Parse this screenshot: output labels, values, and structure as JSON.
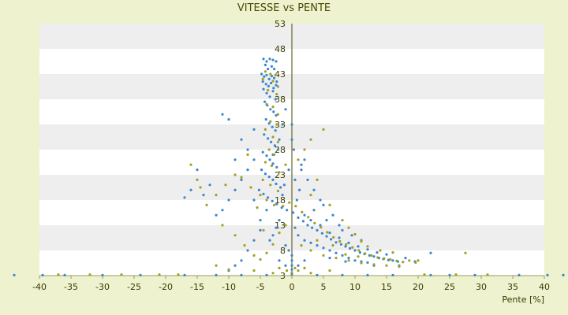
{
  "chart_data": {
    "type": "scatter",
    "title": "VITESSE vs PENTE",
    "xlabel": "Pente [%]",
    "ylabel": "",
    "xlim": [
      -40,
      40
    ],
    "ylim": [
      3,
      53
    ],
    "x_ticks": [
      "-40",
      "-35",
      "-30",
      "-25",
      "-20",
      "-15",
      "-10",
      "-5",
      "0",
      "5",
      "10",
      "15",
      "20",
      "25",
      "30",
      "35",
      "40"
    ],
    "y_ticks": [
      "53",
      "48",
      "43",
      "38",
      "33",
      "28",
      "23",
      "18",
      "13",
      "8",
      "3"
    ],
    "grid": "horizontal alternating bands",
    "legend": "none",
    "colors": {
      "background": "#eef2cf",
      "band_light": "#ffffff",
      "band_dark": "#eeeeee",
      "axis": "#4a4a00",
      "series_blue": "#3a86d0",
      "series_olive": "#a0a020"
    },
    "series": [
      {
        "color": "#3a86d0",
        "points": [
          [
            -4.5,
            46
          ],
          [
            -4,
            45.5
          ],
          [
            -3.5,
            46
          ],
          [
            -3,
            45.8
          ],
          [
            -2.5,
            45.5
          ],
          [
            -4.2,
            44.8
          ],
          [
            -3.8,
            44
          ],
          [
            -3.2,
            44.5
          ],
          [
            -2.8,
            44
          ],
          [
            -4.8,
            43
          ],
          [
            -4.4,
            42.5
          ],
          [
            -4,
            42.8
          ],
          [
            -3.6,
            42
          ],
          [
            -3.2,
            42.6
          ],
          [
            -2.8,
            42.2
          ],
          [
            -2.4,
            41.5
          ],
          [
            -4.6,
            41.5
          ],
          [
            -4.1,
            41
          ],
          [
            -3.7,
            40.6
          ],
          [
            -3.3,
            41.2
          ],
          [
            -2.9,
            40.2
          ],
          [
            -2.5,
            40.8
          ],
          [
            -4.5,
            40
          ],
          [
            -4,
            39.2
          ],
          [
            -3.5,
            38.5
          ],
          [
            -3,
            39.6
          ],
          [
            -2.6,
            38
          ],
          [
            -4.3,
            37.5
          ],
          [
            -3.9,
            36.8
          ],
          [
            -3.4,
            36
          ],
          [
            -2.9,
            35.5
          ],
          [
            -2.5,
            34.8
          ],
          [
            -4.1,
            34
          ],
          [
            -3.6,
            33.2
          ],
          [
            -3.1,
            32.5
          ],
          [
            -2.6,
            31.8
          ],
          [
            -4.4,
            31
          ],
          [
            -3.8,
            30.2
          ],
          [
            -3.3,
            29.5
          ],
          [
            -2.7,
            28.8
          ],
          [
            -2.2,
            28
          ],
          [
            -4.6,
            27.5
          ],
          [
            -4,
            26.8
          ],
          [
            -3.5,
            26
          ],
          [
            -3,
            25.2
          ],
          [
            -2.4,
            24.5
          ],
          [
            -4.8,
            24
          ],
          [
            -4.2,
            23.2
          ],
          [
            -3.6,
            22.6
          ],
          [
            -3,
            22
          ],
          [
            -2.5,
            21.2
          ],
          [
            -1.8,
            20.5
          ],
          [
            -5.2,
            20
          ],
          [
            -4.5,
            19.2
          ],
          [
            -3.8,
            18.5
          ],
          [
            -3.1,
            17.8
          ],
          [
            -2.4,
            17.2
          ],
          [
            -1.6,
            16.5
          ],
          [
            -0.8,
            16
          ],
          [
            0.2,
            15.5
          ],
          [
            0.8,
            18
          ],
          [
            1.2,
            20
          ],
          [
            0.5,
            22
          ],
          [
            1.5,
            24
          ],
          [
            2,
            26
          ],
          [
            0.3,
            28
          ],
          [
            1,
            14.5
          ],
          [
            1.8,
            13.8
          ],
          [
            2.5,
            13
          ],
          [
            3.2,
            12.5
          ],
          [
            4,
            12
          ],
          [
            4.8,
            11.4
          ],
          [
            5.5,
            10.8
          ],
          [
            6.2,
            10.2
          ],
          [
            7,
            9.6
          ],
          [
            7.8,
            9.2
          ],
          [
            8.5,
            8.8
          ],
          [
            9.2,
            8.4
          ],
          [
            10,
            8
          ],
          [
            10.8,
            7.6
          ],
          [
            11.5,
            7.3
          ],
          [
            12.3,
            7
          ],
          [
            13,
            6.8
          ],
          [
            13.8,
            6.5
          ],
          [
            14.5,
            6.3
          ],
          [
            15.3,
            6.1
          ],
          [
            16,
            6
          ],
          [
            16.8,
            5.8
          ],
          [
            2,
            15
          ],
          [
            3,
            14
          ],
          [
            4.5,
            13
          ],
          [
            6,
            11.5
          ],
          [
            7.5,
            10.5
          ],
          [
            9,
            9.5
          ],
          [
            10.5,
            8.8
          ],
          [
            12,
            8.2
          ],
          [
            13.5,
            7.6
          ],
          [
            15,
            7.2
          ],
          [
            3.5,
            16
          ],
          [
            5,
            17
          ],
          [
            6.5,
            15
          ],
          [
            8,
            12
          ],
          [
            9.5,
            11
          ],
          [
            11,
            10
          ],
          [
            1,
            11
          ],
          [
            2,
            10
          ],
          [
            3,
            9.5
          ],
          [
            4,
            9
          ],
          [
            5,
            8.5
          ],
          [
            6,
            8
          ],
          [
            7,
            7.5
          ],
          [
            8,
            7
          ],
          [
            9,
            6.5
          ],
          [
            10,
            6
          ],
          [
            11,
            5.8
          ],
          [
            12,
            5.6
          ],
          [
            -6,
            26
          ],
          [
            -7,
            24
          ],
          [
            -8,
            22
          ],
          [
            -9,
            20
          ],
          [
            -10,
            18
          ],
          [
            -11,
            16
          ],
          [
            -12,
            15
          ],
          [
            -13,
            21
          ],
          [
            -14,
            19
          ],
          [
            -15,
            24
          ],
          [
            -16,
            20
          ],
          [
            -17,
            18.5
          ],
          [
            -8,
            30
          ],
          [
            -10,
            34
          ],
          [
            -11,
            35
          ],
          [
            -6,
            32
          ],
          [
            -7,
            28
          ],
          [
            -9,
            26
          ],
          [
            -5,
            12
          ],
          [
            -6,
            10
          ],
          [
            -7,
            8
          ],
          [
            -8,
            6
          ],
          [
            -9,
            5
          ],
          [
            -10,
            4
          ],
          [
            -44,
            3.1
          ],
          [
            -39.5,
            3.1
          ],
          [
            -36,
            3.1
          ],
          [
            -30,
            3.1
          ],
          [
            -24,
            3.1
          ],
          [
            -17,
            3.1
          ],
          [
            -12,
            3.1
          ],
          [
            -8,
            3.1
          ],
          [
            -4,
            3.1
          ],
          [
            0,
            3.3
          ],
          [
            4,
            3.1
          ],
          [
            8,
            3.1
          ],
          [
            12,
            3.1
          ],
          [
            16,
            3.1
          ],
          [
            22,
            3.1
          ],
          [
            25,
            3.1
          ],
          [
            29,
            3.1
          ],
          [
            36,
            3.1
          ],
          [
            40.5,
            3.1
          ],
          [
            43,
            3.1
          ],
          [
            0,
            5
          ],
          [
            0,
            6
          ],
          [
            0,
            7
          ],
          [
            0,
            4.2
          ],
          [
            1,
            5
          ],
          [
            -1,
            5
          ],
          [
            2,
            6
          ],
          [
            -2,
            6
          ],
          [
            1.5,
            25
          ],
          [
            2.5,
            22
          ],
          [
            3.5,
            20
          ],
          [
            4.5,
            18
          ],
          [
            0,
            30
          ],
          [
            0,
            33
          ],
          [
            -1,
            36
          ],
          [
            -0.5,
            24
          ],
          [
            -1.2,
            21
          ],
          [
            -1.5,
            19
          ],
          [
            -2,
            14
          ],
          [
            -2.5,
            12.5
          ],
          [
            -3,
            11
          ],
          [
            -3.5,
            10
          ],
          [
            -1,
            9
          ],
          [
            -0.5,
            8
          ],
          [
            0.5,
            12.5
          ],
          [
            5.5,
            14
          ],
          [
            7.5,
            13
          ],
          [
            6,
            6.5
          ],
          [
            8.5,
            5.8
          ],
          [
            13,
            5
          ],
          [
            17,
            5
          ],
          [
            18,
            6.5
          ],
          [
            19.5,
            5.8
          ],
          [
            22,
            7.5
          ],
          [
            -5,
            14
          ],
          [
            -4,
            16
          ],
          [
            -6,
            18
          ],
          [
            -3,
            27
          ],
          [
            -2,
            30
          ],
          [
            -1.5,
            33
          ]
        ]
      },
      {
        "color": "#a0a020",
        "points": [
          [
            -4.2,
            43.5
          ],
          [
            -3.4,
            43
          ],
          [
            -2.6,
            42.8
          ],
          [
            -4.6,
            42
          ],
          [
            -3,
            41.6
          ],
          [
            -2.2,
            40.5
          ],
          [
            -3.8,
            39.8
          ],
          [
            -2.4,
            39
          ],
          [
            -4,
            37
          ],
          [
            -3,
            36.5
          ],
          [
            -2.2,
            35
          ],
          [
            -3.4,
            33.6
          ],
          [
            -2.4,
            33
          ],
          [
            -4.2,
            32
          ],
          [
            -3,
            30.5
          ],
          [
            -2.2,
            29.5
          ],
          [
            -3.6,
            28
          ],
          [
            -2.8,
            27
          ],
          [
            -4.2,
            25.5
          ],
          [
            -3.2,
            24.8
          ],
          [
            -2,
            23.5
          ],
          [
            -4.6,
            22
          ],
          [
            -3.4,
            21
          ],
          [
            -2.2,
            19.8
          ],
          [
            -5,
            19
          ],
          [
            -4,
            18
          ],
          [
            -2.8,
            17
          ],
          [
            -1.4,
            16.8
          ],
          [
            -0.4,
            17.5
          ],
          [
            0.6,
            16.8
          ],
          [
            1.6,
            15.6
          ],
          [
            2.6,
            14.6
          ],
          [
            3.6,
            13.4
          ],
          [
            4.6,
            12.6
          ],
          [
            5.6,
            11.6
          ],
          [
            6.6,
            10.6
          ],
          [
            7.6,
            9.8
          ],
          [
            8.6,
            9.2
          ],
          [
            9.6,
            8.6
          ],
          [
            10.6,
            8
          ],
          [
            11.6,
            7.4
          ],
          [
            12.6,
            7
          ],
          [
            13.6,
            6.6
          ],
          [
            14.6,
            6.4
          ],
          [
            15.6,
            6.2
          ],
          [
            16.6,
            5.9
          ],
          [
            17.6,
            5.7
          ],
          [
            18.6,
            6
          ],
          [
            19.6,
            5.6
          ],
          [
            -7,
            27
          ],
          [
            -9,
            23
          ],
          [
            -10.5,
            21
          ],
          [
            -12,
            19
          ],
          [
            -13.5,
            17
          ],
          [
            -15,
            22
          ],
          [
            -16,
            25
          ],
          [
            -14.5,
            20.5
          ],
          [
            -11,
            13
          ],
          [
            -9,
            11
          ],
          [
            -7.5,
            9
          ],
          [
            -6,
            7
          ],
          [
            -12,
            5
          ],
          [
            -10,
            4.2
          ],
          [
            -18,
            3.2
          ],
          [
            -21,
            3.2
          ],
          [
            -27,
            3.2
          ],
          [
            -32,
            3.2
          ],
          [
            -37,
            3.2
          ],
          [
            21,
            3.2
          ],
          [
            26,
            3.2
          ],
          [
            31,
            3.2
          ],
          [
            27.5,
            7.5
          ],
          [
            5,
            32
          ],
          [
            3,
            30
          ],
          [
            2,
            28
          ],
          [
            1,
            26
          ],
          [
            -1,
            25
          ],
          [
            4,
            22
          ],
          [
            3,
            19
          ],
          [
            6,
            17
          ],
          [
            8,
            14
          ],
          [
            9,
            12.5
          ],
          [
            10,
            11.2
          ],
          [
            11,
            9.8
          ],
          [
            12,
            8.8
          ],
          [
            14,
            8
          ],
          [
            16,
            7.6
          ],
          [
            1.5,
            9
          ],
          [
            3,
            8
          ],
          [
            5,
            7
          ],
          [
            7,
            6.5
          ],
          [
            9,
            6
          ],
          [
            11,
            5.5
          ],
          [
            13,
            5.2
          ],
          [
            15,
            5
          ],
          [
            -1,
            13
          ],
          [
            -2,
            11.5
          ],
          [
            -3,
            9.2
          ],
          [
            -4,
            7.5
          ],
          [
            -5,
            6.2
          ],
          [
            0.5,
            4.5
          ],
          [
            0,
            3.6
          ],
          [
            1,
            4
          ],
          [
            -0.8,
            4
          ],
          [
            2,
            4.5
          ],
          [
            -2,
            4.5
          ],
          [
            6,
            4
          ],
          [
            -6,
            4
          ],
          [
            -8,
            22.5
          ],
          [
            -6.5,
            20.5
          ],
          [
            -5.5,
            16.5
          ],
          [
            -4.5,
            12
          ],
          [
            4,
            10
          ],
          [
            6.5,
            9
          ],
          [
            8.5,
            7.2
          ],
          [
            10.5,
            6.8
          ],
          [
            17,
            4.8
          ],
          [
            20,
            6
          ],
          [
            -3,
            3.5
          ],
          [
            3,
            3.5
          ]
        ]
      }
    ]
  }
}
